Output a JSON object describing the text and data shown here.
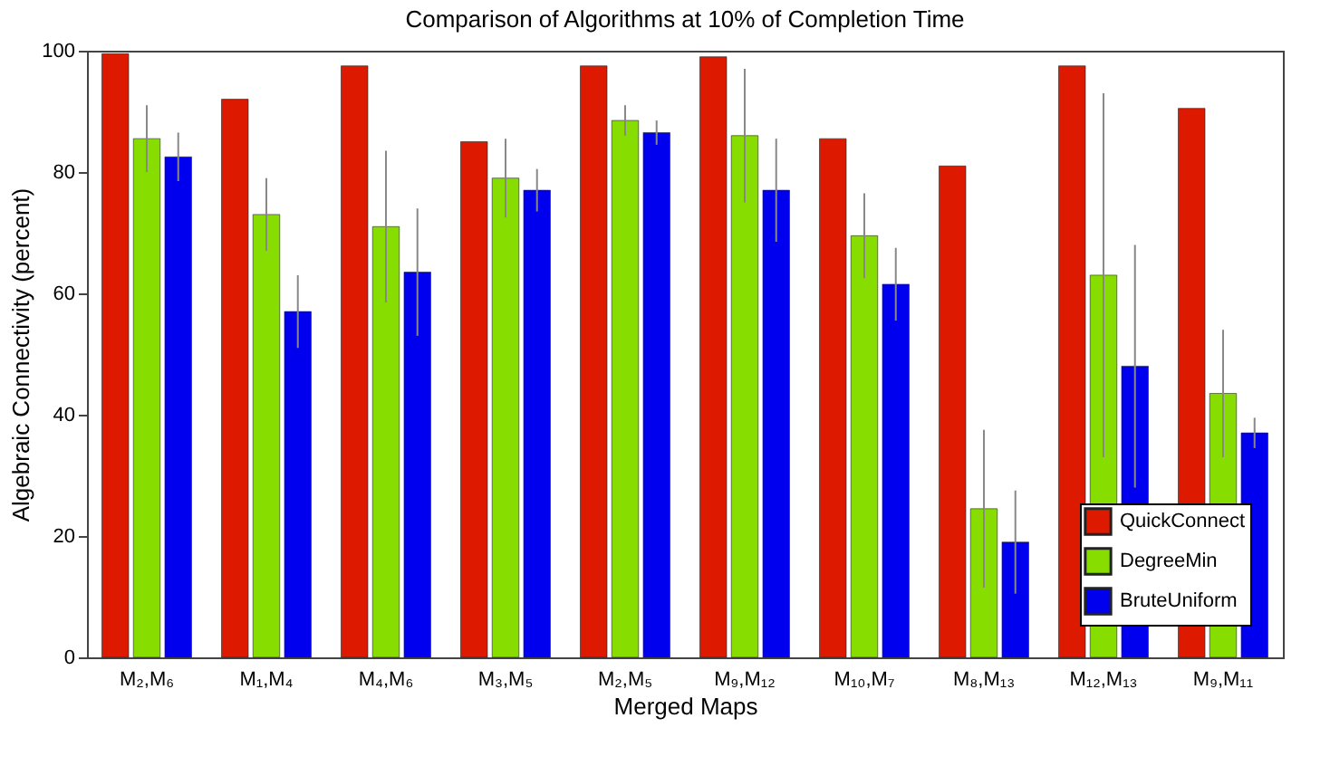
{
  "chart_data": {
    "type": "bar",
    "title": "Comparison of Algorithms at 10% of Completion Time",
    "xlabel": "Merged Maps",
    "ylabel": "Algebraic Connectivity (percent)",
    "categories": [
      "M₂,M₆",
      "M₁,M₄",
      "M₄,M₆",
      "M₃,M₅",
      "M₂,M₅",
      "M₉,M₁₂",
      "M₁₀,M₇",
      "M₈,M₁₃",
      "M₁₂,M₁₃",
      "M₉,M₁₁"
    ],
    "series": [
      {
        "name": "QuickConnect",
        "color": "#dd1a00",
        "values": [
          99.5,
          92,
          97.5,
          85,
          97.5,
          99,
          85.5,
          81,
          97.5,
          90.5
        ]
      },
      {
        "name": "DegreeMin",
        "color": "#88dd00",
        "values": [
          85.5,
          73,
          71,
          79,
          88.5,
          86,
          69.5,
          24.5,
          63,
          43.5
        ],
        "errors": [
          5.5,
          6,
          12.5,
          6.5,
          2.5,
          11,
          7,
          13,
          30,
          10.5
        ]
      },
      {
        "name": "BruteUniform",
        "color": "#0000ee",
        "values": [
          82.5,
          57,
          63.5,
          77,
          86.5,
          77,
          61.5,
          19,
          48,
          37
        ],
        "errors": [
          4,
          6,
          10.5,
          3.5,
          2,
          8.5,
          6,
          8.5,
          20,
          2.5
        ]
      }
    ],
    "ylim": [
      0,
      100
    ],
    "yticks": [
      0,
      20,
      40,
      60,
      80,
      100
    ],
    "grid": false,
    "legend": "bottom right"
  }
}
